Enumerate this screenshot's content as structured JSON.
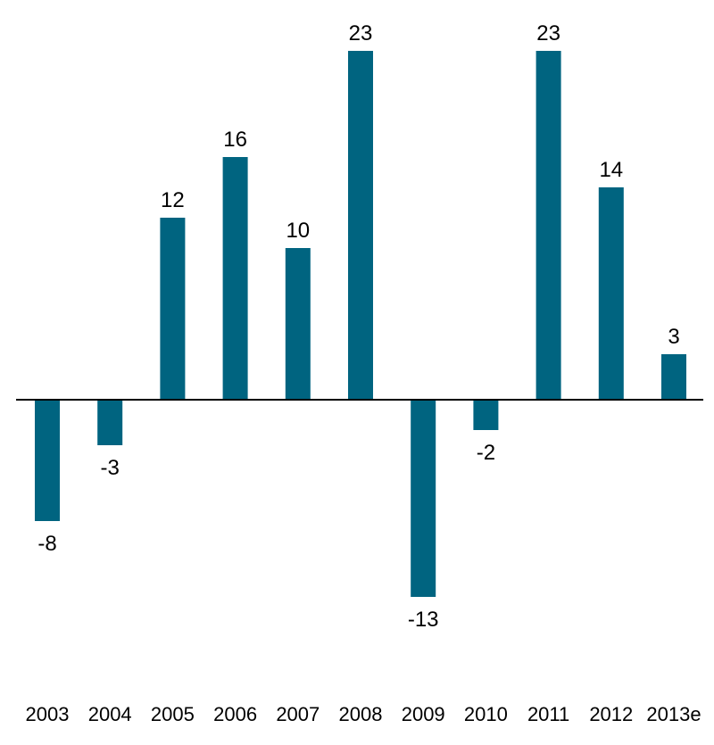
{
  "chart_data": {
    "type": "bar",
    "title": "",
    "xlabel": "",
    "ylabel": "",
    "categories": [
      "2003",
      "2004",
      "2005",
      "2006",
      "2007",
      "2008",
      "2009",
      "2010",
      "2011",
      "2012",
      "2013e"
    ],
    "values": [
      -8,
      -3,
      12,
      16,
      10,
      23,
      -13,
      -2,
      23,
      14,
      3
    ],
    "data_labels": [
      "-8",
      "-3",
      "12",
      "16",
      "10",
      "23",
      "-13",
      "-2",
      "23",
      "14",
      "3"
    ],
    "ylim": [
      -13,
      23
    ],
    "grid": false,
    "legend": "none",
    "zero_line": true,
    "colors": {
      "bar": "#006480",
      "axis": "#000000",
      "text": "#000000"
    }
  }
}
